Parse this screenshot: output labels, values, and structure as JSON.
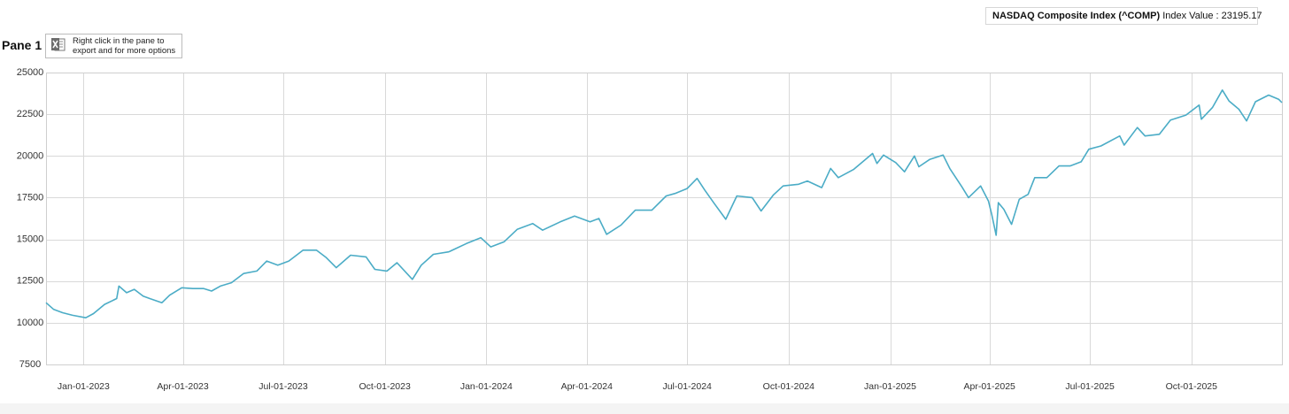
{
  "legend": {
    "series_name": "NASDAQ Composite Index (^COMP)",
    "value_label": "Index Value : 23195.17",
    "color": "#4bacc6"
  },
  "pane": {
    "title": "Pane 1"
  },
  "export_tip": {
    "icon": "excel-icon",
    "line1": "Right click in the pane to",
    "line2": "export and for more options"
  },
  "chart_data": {
    "type": "line",
    "title": "",
    "xlabel": "",
    "ylabel": "",
    "grid": true,
    "legend_position": "top-right",
    "xlim": [
      "2022-11-28",
      "2025-12-22"
    ],
    "ylim": [
      7500,
      25000
    ],
    "y_ticks": [
      7500,
      10000,
      12500,
      15000,
      17500,
      20000,
      22500,
      25000
    ],
    "y_tick_labels": [
      "7500",
      "10000",
      "12500",
      "15000",
      "17500",
      "20000",
      "22500",
      "25000"
    ],
    "x_ticks": [
      "2023-01-01",
      "2023-04-01",
      "2023-07-01",
      "2023-10-01",
      "2024-01-01",
      "2024-04-01",
      "2024-07-01",
      "2024-10-01",
      "2025-01-01",
      "2025-04-01",
      "2025-07-01",
      "2025-10-01"
    ],
    "x_tick_labels": [
      "Jan-01-2023",
      "Apr-01-2023",
      "Jul-01-2023",
      "Oct-01-2023",
      "Jan-01-2024",
      "Apr-01-2024",
      "Jul-01-2024",
      "Oct-01-2024",
      "Jan-01-2025",
      "Apr-01-2025",
      "Jul-01-2025",
      "Oct-01-2025"
    ],
    "series": [
      {
        "name": "NASDAQ Composite Index (^COMP)",
        "color": "#4bacc6",
        "points": [
          [
            "2022-11-28",
            11200
          ],
          [
            "2022-12-05",
            10800
          ],
          [
            "2022-12-13",
            10600
          ],
          [
            "2022-12-22",
            10450
          ],
          [
            "2023-01-03",
            10300
          ],
          [
            "2023-01-10",
            10550
          ],
          [
            "2023-01-20",
            11100
          ],
          [
            "2023-01-31",
            11450
          ],
          [
            "2023-02-02",
            12200
          ],
          [
            "2023-02-09",
            11800
          ],
          [
            "2023-02-16",
            12000
          ],
          [
            "2023-02-24",
            11600
          ],
          [
            "2023-03-02",
            11450
          ],
          [
            "2023-03-13",
            11200
          ],
          [
            "2023-03-20",
            11650
          ],
          [
            "2023-03-31",
            12100
          ],
          [
            "2023-04-10",
            12050
          ],
          [
            "2023-04-20",
            12050
          ],
          [
            "2023-04-27",
            11900
          ],
          [
            "2023-05-05",
            12200
          ],
          [
            "2023-05-15",
            12400
          ],
          [
            "2023-05-26",
            12950
          ],
          [
            "2023-06-07",
            13100
          ],
          [
            "2023-06-16",
            13700
          ],
          [
            "2023-06-26",
            13450
          ],
          [
            "2023-07-06",
            13700
          ],
          [
            "2023-07-19",
            14350
          ],
          [
            "2023-07-31",
            14350
          ],
          [
            "2023-08-09",
            13900
          ],
          [
            "2023-08-18",
            13300
          ],
          [
            "2023-08-31",
            14050
          ],
          [
            "2023-09-14",
            13950
          ],
          [
            "2023-09-22",
            13200
          ],
          [
            "2023-10-03",
            13100
          ],
          [
            "2023-10-12",
            13600
          ],
          [
            "2023-10-26",
            12600
          ],
          [
            "2023-11-03",
            13450
          ],
          [
            "2023-11-14",
            14100
          ],
          [
            "2023-11-28",
            14250
          ],
          [
            "2023-12-14",
            14750
          ],
          [
            "2023-12-27",
            15100
          ],
          [
            "2024-01-05",
            14550
          ],
          [
            "2024-01-17",
            14850
          ],
          [
            "2024-01-29",
            15600
          ],
          [
            "2024-02-12",
            15950
          ],
          [
            "2024-02-21",
            15550
          ],
          [
            "2024-03-08",
            16050
          ],
          [
            "2024-03-21",
            16400
          ],
          [
            "2024-04-04",
            16050
          ],
          [
            "2024-04-12",
            16250
          ],
          [
            "2024-04-19",
            15300
          ],
          [
            "2024-05-02",
            15850
          ],
          [
            "2024-05-15",
            16750
          ],
          [
            "2024-05-30",
            16750
          ],
          [
            "2024-06-12",
            17600
          ],
          [
            "2024-06-20",
            17750
          ],
          [
            "2024-07-01",
            18050
          ],
          [
            "2024-07-10",
            18650
          ],
          [
            "2024-07-17",
            17950
          ],
          [
            "2024-07-25",
            17200
          ],
          [
            "2024-08-05",
            16200
          ],
          [
            "2024-08-15",
            17600
          ],
          [
            "2024-08-29",
            17500
          ],
          [
            "2024-09-06",
            16700
          ],
          [
            "2024-09-17",
            17650
          ],
          [
            "2024-09-26",
            18200
          ],
          [
            "2024-10-10",
            18300
          ],
          [
            "2024-10-18",
            18500
          ],
          [
            "2024-10-31",
            18100
          ],
          [
            "2024-11-08",
            19250
          ],
          [
            "2024-11-15",
            18700
          ],
          [
            "2024-11-29",
            19200
          ],
          [
            "2024-12-16",
            20150
          ],
          [
            "2024-12-20",
            19550
          ],
          [
            "2024-12-26",
            20050
          ],
          [
            "2025-01-06",
            19600
          ],
          [
            "2025-01-14",
            19050
          ],
          [
            "2025-01-23",
            20000
          ],
          [
            "2025-01-27",
            19350
          ],
          [
            "2025-02-06",
            19800
          ],
          [
            "2025-02-18",
            20050
          ],
          [
            "2025-02-24",
            19250
          ],
          [
            "2025-03-07",
            18150
          ],
          [
            "2025-03-13",
            17500
          ],
          [
            "2025-03-24",
            18200
          ],
          [
            "2025-03-31",
            17300
          ],
          [
            "2025-04-03",
            16500
          ],
          [
            "2025-04-07",
            15250
          ],
          [
            "2025-04-09",
            17200
          ],
          [
            "2025-04-14",
            16800
          ],
          [
            "2025-04-21",
            15900
          ],
          [
            "2025-04-28",
            17400
          ],
          [
            "2025-05-06",
            17700
          ],
          [
            "2025-05-12",
            18700
          ],
          [
            "2025-05-23",
            18700
          ],
          [
            "2025-06-03",
            19400
          ],
          [
            "2025-06-13",
            19400
          ],
          [
            "2025-06-23",
            19650
          ],
          [
            "2025-06-30",
            20400
          ],
          [
            "2025-07-11",
            20600
          ],
          [
            "2025-07-28",
            21200
          ],
          [
            "2025-08-01",
            20650
          ],
          [
            "2025-08-13",
            21700
          ],
          [
            "2025-08-20",
            21200
          ],
          [
            "2025-09-02",
            21300
          ],
          [
            "2025-09-12",
            22150
          ],
          [
            "2025-09-26",
            22450
          ],
          [
            "2025-10-08",
            23050
          ],
          [
            "2025-10-10",
            22200
          ],
          [
            "2025-10-20",
            22900
          ],
          [
            "2025-10-29",
            23950
          ],
          [
            "2025-11-04",
            23300
          ],
          [
            "2025-11-13",
            22800
          ],
          [
            "2025-11-20",
            22100
          ],
          [
            "2025-11-28",
            23250
          ],
          [
            "2025-12-10",
            23650
          ],
          [
            "2025-12-19",
            23400
          ],
          [
            "2025-12-22",
            23195
          ]
        ]
      }
    ]
  }
}
